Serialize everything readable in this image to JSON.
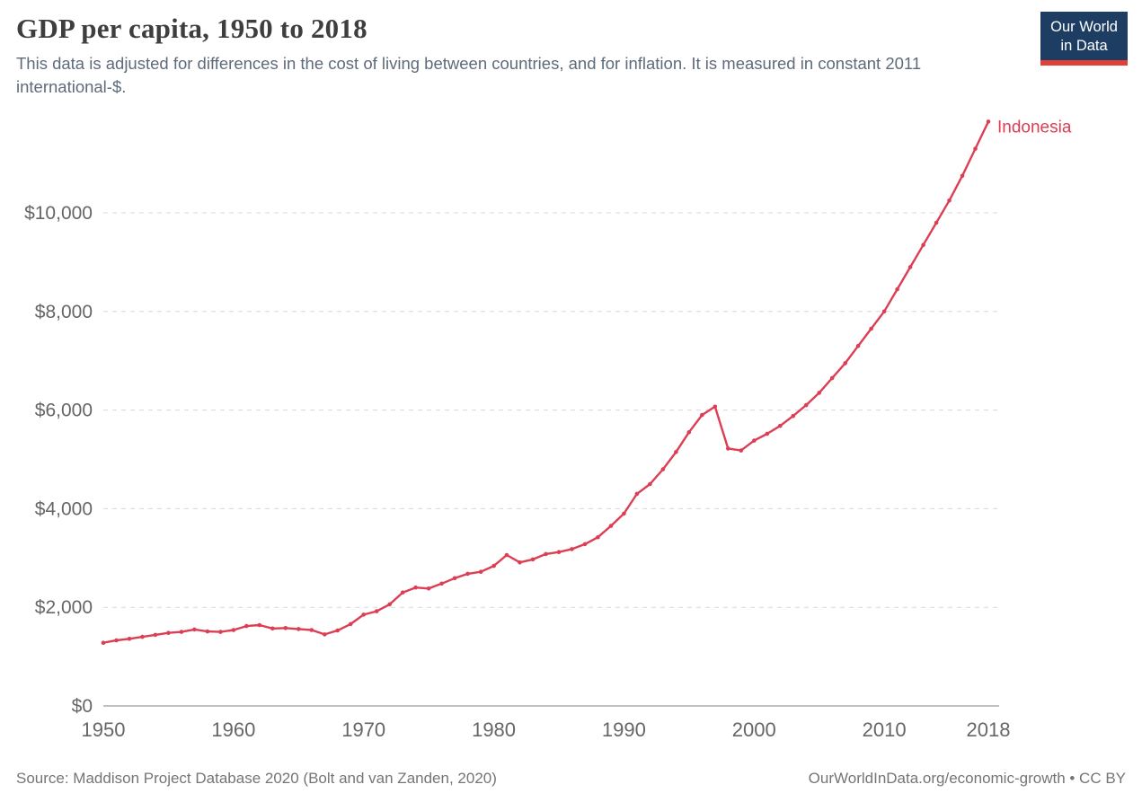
{
  "header": {
    "title": "GDP per capita, 1950 to 2018",
    "subtitle": "This data is adjusted for differences in the cost of living between countries, and for inflation. It is measured in constant 2011 international-$."
  },
  "logo": {
    "line1": "Our World",
    "line2": "in Data",
    "bg_color": "#1d3d63",
    "accent_color": "#e0403a"
  },
  "footer": {
    "source": "Source: Maddison Project Database 2020 (Bolt and van Zanden, 2020)",
    "link": "OurWorldInData.org/economic-growth • CC BY"
  },
  "chart_data": {
    "type": "line",
    "title": "GDP per capita, 1950 to 2018",
    "entity_label": "Indonesia",
    "line_color": "#dc3e54",
    "grid_color": "#d8d8d8",
    "axis_color": "#999999",
    "tick_color": "#666666",
    "ylim": [
      0,
      12000
    ],
    "yticks": [
      0,
      2000,
      4000,
      6000,
      8000,
      10000
    ],
    "ytick_labels": [
      "$0",
      "$2,000",
      "$4,000",
      "$6,000",
      "$8,000",
      "$10,000"
    ],
    "xticks": [
      1950,
      1960,
      1970,
      1980,
      1990,
      2000,
      2010,
      2018
    ],
    "x": [
      1950,
      1951,
      1952,
      1953,
      1954,
      1955,
      1956,
      1957,
      1958,
      1959,
      1960,
      1961,
      1962,
      1963,
      1964,
      1965,
      1966,
      1967,
      1968,
      1969,
      1970,
      1971,
      1972,
      1973,
      1974,
      1975,
      1976,
      1977,
      1978,
      1979,
      1980,
      1981,
      1982,
      1983,
      1984,
      1985,
      1986,
      1987,
      1988,
      1989,
      1990,
      1991,
      1992,
      1993,
      1994,
      1995,
      1996,
      1997,
      1998,
      1999,
      2000,
      2001,
      2002,
      2003,
      2004,
      2005,
      2006,
      2007,
      2008,
      2009,
      2010,
      2011,
      2012,
      2013,
      2014,
      2015,
      2016,
      2017,
      2018
    ],
    "series": [
      {
        "name": "Indonesia",
        "values": [
          1280,
          1330,
          1360,
          1400,
          1440,
          1480,
          1500,
          1550,
          1510,
          1500,
          1540,
          1620,
          1640,
          1570,
          1580,
          1560,
          1540,
          1450,
          1530,
          1660,
          1850,
          1920,
          2060,
          2300,
          2400,
          2380,
          2480,
          2590,
          2680,
          2720,
          2840,
          3060,
          2910,
          2970,
          3080,
          3120,
          3180,
          3280,
          3420,
          3650,
          3900,
          4300,
          4500,
          4800,
          5150,
          5550,
          5900,
          6070,
          5220,
          5180,
          5380,
          5520,
          5680,
          5880,
          6100,
          6350,
          6650,
          6950,
          7300,
          7650,
          8000,
          8450,
          8900,
          9350,
          9800,
          10250,
          10750,
          11300,
          11850
        ]
      }
    ],
    "legend_position": "end-of-line",
    "grid": "dashed-horizontal"
  }
}
